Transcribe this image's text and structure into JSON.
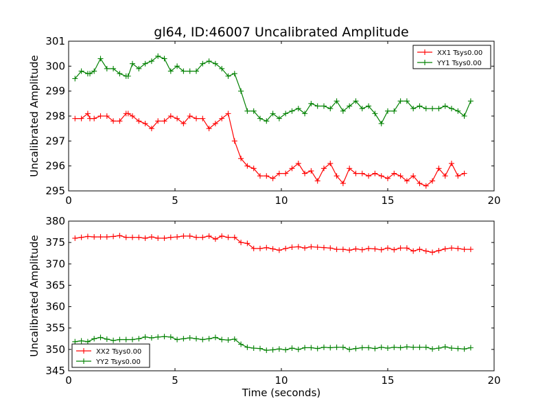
{
  "figure": {
    "title": "gl64, ID:46007 Uncalibrated Amplitude"
  },
  "chart_data": [
    {
      "type": "line",
      "title": "gl64, ID:46007 Uncalibrated Amplitude",
      "xlabel": "",
      "ylabel": "Uncalibrated Amplitude",
      "xlim": [
        0,
        20
      ],
      "ylim": [
        295,
        301
      ],
      "xticks": [
        "0",
        "5",
        "10",
        "15",
        "20"
      ],
      "yticks": [
        "295",
        "296",
        "297",
        "298",
        "299",
        "300",
        "301"
      ],
      "grid": false,
      "legend_position": "top-right",
      "x": [
        0.3,
        0.6,
        0.9,
        1.0,
        1.2,
        1.5,
        1.8,
        2.1,
        2.4,
        2.7,
        2.8,
        3.0,
        3.3,
        3.6,
        3.9,
        4.2,
        4.5,
        4.8,
        5.1,
        5.4,
        5.7,
        6.0,
        6.3,
        6.6,
        6.9,
        7.2,
        7.5,
        7.8,
        8.1,
        8.4,
        8.7,
        9.0,
        9.3,
        9.6,
        9.9,
        10.2,
        10.5,
        10.8,
        11.1,
        11.4,
        11.7,
        12.0,
        12.3,
        12.6,
        12.9,
        13.2,
        13.5,
        13.8,
        14.1,
        14.4,
        14.7,
        15.0,
        15.3,
        15.6,
        15.9,
        16.2,
        16.5,
        16.8,
        17.1,
        17.4,
        17.7,
        18.0,
        18.3,
        18.6,
        18.9
      ],
      "series": [
        {
          "name": "XX1 Tsys0.00",
          "color": "#ff0000",
          "values": [
            297.9,
            297.9,
            298.1,
            297.9,
            297.9,
            298.0,
            298.0,
            297.8,
            297.8,
            298.1,
            298.1,
            298.0,
            297.8,
            297.7,
            297.5,
            297.8,
            297.8,
            298.0,
            297.9,
            297.7,
            298.0,
            297.9,
            297.9,
            297.5,
            297.7,
            297.9,
            298.1,
            297.0,
            296.3,
            296.0,
            295.9,
            295.6,
            295.6,
            295.5,
            295.7,
            295.7,
            295.9,
            296.1,
            295.7,
            295.8,
            295.4,
            295.9,
            296.1,
            295.6,
            295.3,
            295.9,
            295.7,
            295.7,
            295.6,
            295.7,
            295.6,
            295.5,
            295.7,
            295.6,
            295.4,
            295.6,
            295.3,
            295.2,
            295.4,
            295.9,
            295.6,
            296.1,
            295.6,
            295.7,
            null
          ]
        },
        {
          "name": "YY1 Tsys0.00",
          "color": "#008000",
          "values": [
            299.5,
            299.8,
            299.7,
            299.7,
            299.8,
            300.3,
            299.9,
            299.9,
            299.7,
            299.6,
            299.6,
            300.1,
            299.9,
            300.1,
            300.2,
            300.4,
            300.3,
            299.8,
            300.0,
            299.8,
            299.8,
            299.8,
            300.1,
            300.2,
            300.1,
            299.9,
            299.6,
            299.7,
            299.0,
            298.2,
            298.2,
            297.9,
            297.8,
            298.1,
            297.9,
            298.1,
            298.2,
            298.3,
            298.1,
            298.5,
            298.4,
            298.4,
            298.3,
            298.6,
            298.2,
            298.4,
            298.6,
            298.3,
            298.4,
            298.1,
            297.7,
            298.2,
            298.2,
            298.6,
            298.6,
            298.3,
            298.4,
            298.3,
            298.3,
            298.3,
            298.4,
            298.3,
            298.2,
            298.0,
            298.6
          ]
        }
      ]
    },
    {
      "type": "line",
      "title": "",
      "xlabel": "Time (seconds)",
      "ylabel": "Uncalibrated Amplitude",
      "xlim": [
        0,
        20
      ],
      "ylim": [
        345,
        380
      ],
      "xticks": [
        "0",
        "5",
        "10",
        "15",
        "20"
      ],
      "yticks": [
        "345",
        "350",
        "355",
        "360",
        "365",
        "370",
        "375",
        "380"
      ],
      "grid": false,
      "legend_position": "bottom-left",
      "x": [
        0.3,
        0.6,
        0.9,
        1.2,
        1.5,
        1.8,
        2.1,
        2.4,
        2.7,
        3.0,
        3.3,
        3.6,
        3.9,
        4.2,
        4.5,
        4.8,
        5.1,
        5.4,
        5.7,
        6.0,
        6.3,
        6.6,
        6.9,
        7.2,
        7.5,
        7.8,
        8.1,
        8.4,
        8.7,
        9.0,
        9.3,
        9.6,
        9.9,
        10.2,
        10.5,
        10.8,
        11.1,
        11.4,
        11.7,
        12.0,
        12.3,
        12.6,
        12.9,
        13.2,
        13.5,
        13.8,
        14.1,
        14.4,
        14.7,
        15.0,
        15.3,
        15.6,
        15.9,
        16.2,
        16.5,
        16.8,
        17.1,
        17.4,
        17.7,
        18.0,
        18.3,
        18.6,
        18.9
      ],
      "series": [
        {
          "name": "XX2 Tsys0.00",
          "color": "#ff0000",
          "values": [
            376.0,
            376.2,
            376.4,
            376.3,
            376.3,
            376.3,
            376.4,
            376.6,
            376.2,
            376.2,
            376.2,
            376.0,
            376.3,
            376.0,
            376.0,
            376.2,
            376.3,
            376.5,
            376.5,
            376.2,
            376.2,
            376.5,
            375.8,
            376.5,
            376.2,
            376.2,
            375.0,
            374.8,
            373.6,
            373.6,
            373.8,
            373.5,
            373.2,
            373.6,
            373.9,
            374.0,
            373.7,
            374.0,
            373.9,
            373.8,
            373.7,
            373.4,
            373.4,
            373.2,
            373.5,
            373.3,
            373.6,
            373.5,
            373.3,
            373.7,
            373.3,
            373.7,
            373.7,
            373.0,
            373.4,
            373.0,
            372.7,
            373.1,
            373.5,
            373.7,
            373.6,
            373.4,
            373.4
          ]
        },
        {
          "name": "YY2 Tsys0.00",
          "color": "#008000",
          "values": [
            351.8,
            352.0,
            351.8,
            352.5,
            352.8,
            352.4,
            352.1,
            352.3,
            352.3,
            352.3,
            352.5,
            352.9,
            352.7,
            352.9,
            353.0,
            352.9,
            352.3,
            352.5,
            352.7,
            352.5,
            352.3,
            352.5,
            352.8,
            352.3,
            352.2,
            352.4,
            351.2,
            350.5,
            350.3,
            350.2,
            349.8,
            349.9,
            350.1,
            349.9,
            350.3,
            350.0,
            350.4,
            350.4,
            350.2,
            350.5,
            350.4,
            350.5,
            350.5,
            350.0,
            350.2,
            350.4,
            350.4,
            350.2,
            350.5,
            350.3,
            350.5,
            350.4,
            350.6,
            350.5,
            350.5,
            350.5,
            350.1,
            350.3,
            350.6,
            350.3,
            350.2,
            350.1,
            350.4
          ]
        }
      ]
    }
  ]
}
